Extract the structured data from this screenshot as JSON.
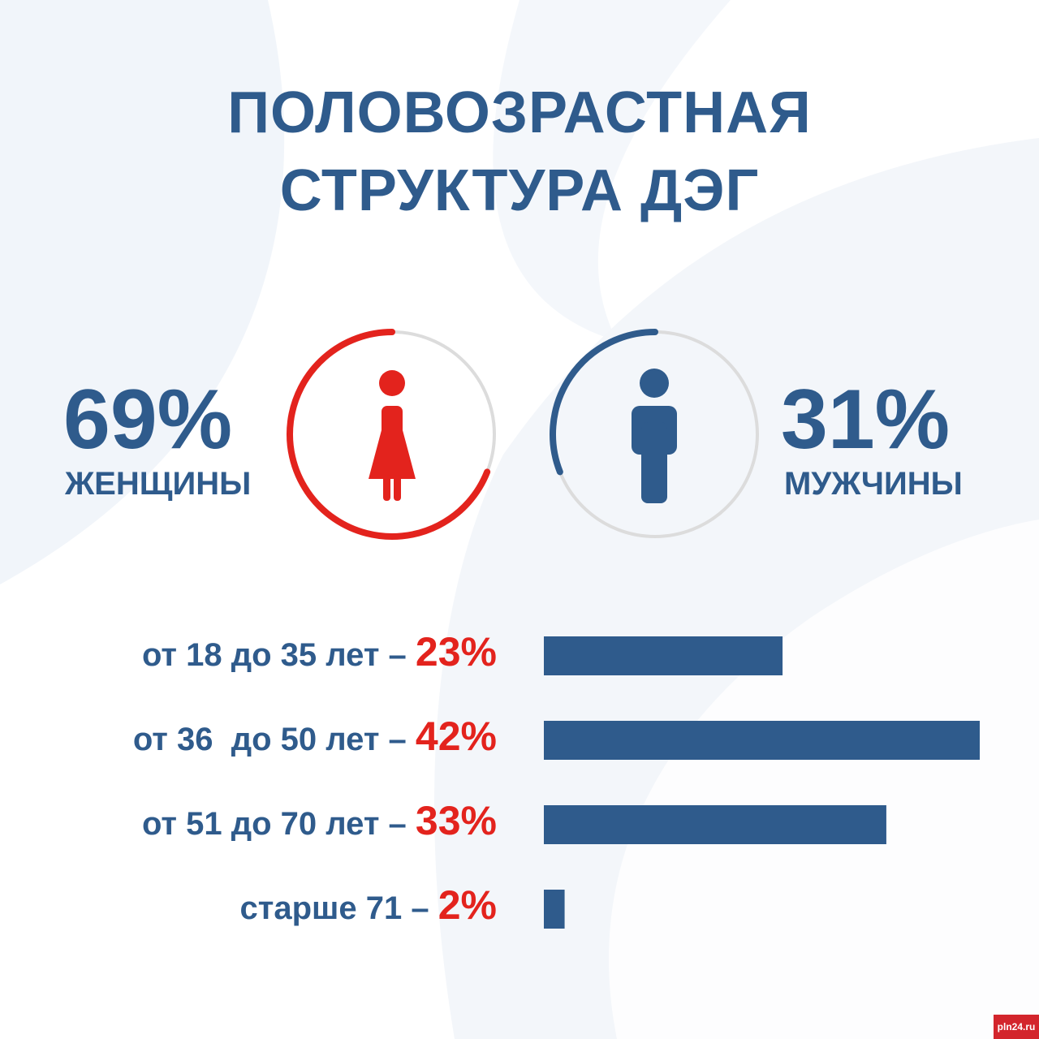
{
  "title": {
    "line1": "ПОЛОВОЗРАСТНАЯ",
    "line2": "СТРУКТУРА ДЭГ"
  },
  "gender": {
    "women": {
      "percent": "69%",
      "label": "ЖЕНЩИНЫ",
      "share": 0.69,
      "color": "#e3231d"
    },
    "men": {
      "percent": "31%",
      "label": "МУЖЧИНЫ",
      "share": 0.31,
      "color": "#2f5b8c"
    },
    "track_color": "#dcdcdc"
  },
  "chart_data": {
    "type": "bar",
    "orientation": "horizontal",
    "categories": [
      "от 18 до 35 лет",
      "от 36  до 50 лет",
      "от 51 до 70 лет",
      "старше 71"
    ],
    "values": [
      23,
      42,
      33,
      2
    ],
    "value_labels": [
      "23%",
      "42%",
      "33%",
      "2%"
    ],
    "xlim": [
      0,
      42
    ],
    "bar_color": "#2f5b8c",
    "label_color": "#2f5b8c",
    "value_color": "#e3231d"
  },
  "watermark": "pln24.ru",
  "colors": {
    "primary": "#2f5b8c",
    "accent": "#e3231d"
  }
}
